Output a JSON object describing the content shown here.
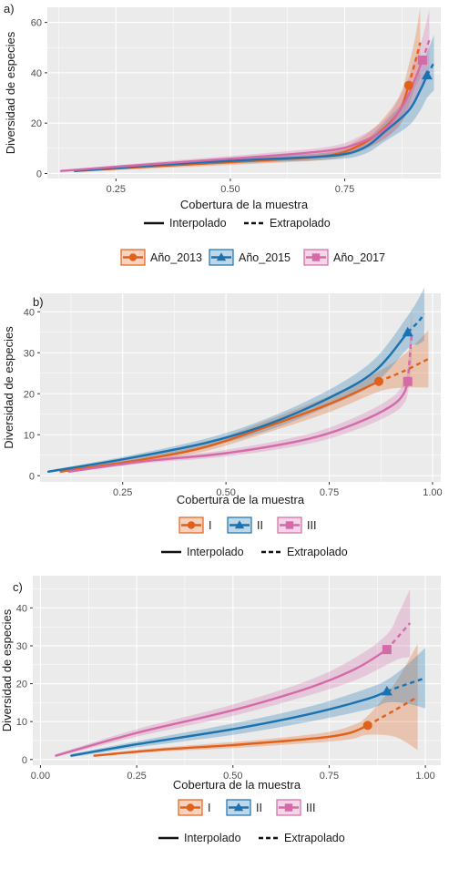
{
  "chart_data": [
    {
      "panel_label": "a)",
      "type": "line",
      "xlabel": "Cobertura de la muestra",
      "ylabel": "Diversidad de especies",
      "xlim": [
        0.1,
        0.96
      ],
      "ylim": [
        -2,
        66
      ],
      "x_ticks": [
        0.25,
        0.5,
        0.75
      ],
      "x_tick_labels": [
        "0.25",
        "0.50",
        "0.75"
      ],
      "y_ticks": [
        0,
        20,
        40,
        60
      ],
      "y_tick_labels": [
        "0",
        "20",
        "40",
        "60"
      ],
      "grid": true,
      "legend_position": "bottom",
      "line_legend": [
        "Interpolado",
        "Extrapolado"
      ],
      "series": [
        {
          "name": "Año_2013",
          "color": "#e1601a",
          "marker": "circle",
          "interpolated": [
            [
              0.16,
              1
            ],
            [
              0.35,
              3
            ],
            [
              0.55,
              5
            ],
            [
              0.71,
              7
            ],
            [
              0.78,
              11
            ],
            [
              0.83,
              17
            ],
            [
              0.87,
              25
            ],
            [
              0.89,
              35
            ]
          ],
          "extrapolated": [
            [
              0.89,
              35
            ],
            [
              0.905,
              45
            ],
            [
              0.915,
              52
            ]
          ],
          "band_half_width": [
            0.4,
            0.8,
            1.2,
            1.5,
            2.5,
            4,
            6,
            8,
            10,
            14,
            18
          ]
        },
        {
          "name": "Año_2015",
          "color": "#1a72b0",
          "marker": "triangle",
          "interpolated": [
            [
              0.16,
              1
            ],
            [
              0.35,
              3.5
            ],
            [
              0.55,
              5.5
            ],
            [
              0.72,
              7
            ],
            [
              0.79,
              10
            ],
            [
              0.84,
              17
            ],
            [
              0.89,
              25
            ],
            [
              0.915,
              33
            ],
            [
              0.93,
              39
            ]
          ],
          "extrapolated": [
            [
              0.93,
              39
            ],
            [
              0.945,
              44
            ]
          ],
          "band_half_width": [
            0.4,
            0.8,
            1.2,
            1.5,
            2.5,
            4,
            6,
            8,
            9,
            11
          ]
        },
        {
          "name": "Año_2017",
          "color": "#d46aa8",
          "marker": "square",
          "interpolated": [
            [
              0.13,
              1
            ],
            [
              0.35,
              4
            ],
            [
              0.55,
              6.5
            ],
            [
              0.71,
              9
            ],
            [
              0.78,
              12
            ],
            [
              0.84,
              18
            ],
            [
              0.88,
              28
            ],
            [
              0.905,
              38
            ],
            [
              0.92,
              45
            ]
          ],
          "extrapolated": [
            [
              0.92,
              45
            ],
            [
              0.935,
              53
            ]
          ],
          "band_half_width": [
            0.4,
            0.8,
            1.2,
            1.5,
            2.5,
            4,
            6,
            8,
            9,
            12
          ]
        }
      ]
    },
    {
      "panel_label": "b)",
      "type": "line",
      "xlabel": "Cobertura de la muestra",
      "ylabel": "Diversidad de especies",
      "xlim": [
        0.05,
        1.02
      ],
      "ylim": [
        -1.5,
        44.5
      ],
      "x_ticks": [
        0.25,
        0.5,
        0.75,
        1.0
      ],
      "x_tick_labels": [
        "0.25",
        "0.50",
        "0.75",
        "1.00"
      ],
      "y_ticks": [
        0,
        10,
        20,
        30,
        40
      ],
      "y_tick_labels": [
        "0",
        "10",
        "20",
        "30",
        "40"
      ],
      "grid": true,
      "legend_position": "bottom",
      "line_legend": [
        "Interpolado",
        "Extrapolado"
      ],
      "series": [
        {
          "name": "I",
          "color": "#e1601a",
          "marker": "circle",
          "interpolated": [
            [
              0.1,
              1
            ],
            [
              0.3,
              4
            ],
            [
              0.45,
              7
            ],
            [
              0.6,
              12
            ],
            [
              0.75,
              17.5
            ],
            [
              0.87,
              23
            ]
          ],
          "extrapolated": [
            [
              0.87,
              23
            ],
            [
              0.93,
              25.5
            ],
            [
              0.99,
              28.5
            ]
          ],
          "band_half_width": [
            0.3,
            0.6,
            1,
            1.5,
            2,
            2.5,
            4,
            7,
            10
          ]
        },
        {
          "name": "II",
          "color": "#1a72b0",
          "marker": "triangle",
          "interpolated": [
            [
              0.07,
              1
            ],
            [
              0.25,
              4
            ],
            [
              0.45,
              8
            ],
            [
              0.6,
              12.5
            ],
            [
              0.75,
              19
            ],
            [
              0.86,
              25.5
            ],
            [
              0.94,
              35
            ]
          ],
          "extrapolated": [
            [
              0.94,
              35
            ],
            [
              0.965,
              37.5
            ],
            [
              0.98,
              39.5
            ]
          ],
          "band_half_width": [
            0.3,
            0.6,
            1,
            1.5,
            2,
            3,
            4,
            5.5,
            6.5,
            7
          ]
        },
        {
          "name": "III",
          "color": "#d46aa8",
          "marker": "square",
          "interpolated": [
            [
              0.12,
              1
            ],
            [
              0.3,
              3.5
            ],
            [
              0.5,
              5.5
            ],
            [
              0.7,
              9
            ],
            [
              0.82,
              13
            ],
            [
              0.9,
              17
            ],
            [
              0.93,
              20
            ],
            [
              0.94,
              23
            ]
          ],
          "extrapolated": [
            [
              0.94,
              23
            ],
            [
              0.945,
              29
            ],
            [
              0.95,
              35
            ]
          ],
          "band_half_width": [
            0.3,
            0.5,
            0.8,
            1.2,
            1.6,
            2,
            2.5,
            3,
            5,
            7
          ]
        }
      ]
    },
    {
      "panel_label": "c)",
      "type": "line",
      "xlabel": "Cobertura de la muestra",
      "ylabel": "Diversidad de especies",
      "xlim": [
        -0.02,
        1.04
      ],
      "ylim": [
        -1.5,
        48.5
      ],
      "x_ticks": [
        0.0,
        0.25,
        0.5,
        0.75,
        1.0
      ],
      "x_tick_labels": [
        "0.00",
        "0.25",
        "0.50",
        "0.75",
        "1.00"
      ],
      "y_ticks": [
        0,
        10,
        20,
        30,
        40
      ],
      "y_tick_labels": [
        "0",
        "10",
        "20",
        "30",
        "40"
      ],
      "grid": true,
      "legend_position": "bottom",
      "line_legend": [
        "Interpolado",
        "Extrapolado"
      ],
      "series": [
        {
          "name": "I",
          "color": "#e1601a",
          "marker": "circle",
          "interpolated": [
            [
              0.14,
              1
            ],
            [
              0.3,
              2.5
            ],
            [
              0.5,
              3.8
            ],
            [
              0.65,
              5
            ],
            [
              0.75,
              6
            ],
            [
              0.81,
              7.2
            ],
            [
              0.85,
              9
            ]
          ],
          "extrapolated": [
            [
              0.85,
              9
            ],
            [
              0.92,
              13
            ],
            [
              0.98,
              16.5
            ]
          ],
          "band_half_width": [
            0.3,
            0.5,
            0.8,
            1,
            1.3,
            1.8,
            2.5,
            7,
            14
          ]
        },
        {
          "name": "II",
          "color": "#1a72b0",
          "marker": "triangle",
          "interpolated": [
            [
              0.08,
              1
            ],
            [
              0.25,
              4
            ],
            [
              0.5,
              8
            ],
            [
              0.7,
              12
            ],
            [
              0.85,
              16
            ],
            [
              0.9,
              18
            ]
          ],
          "extrapolated": [
            [
              0.9,
              18
            ],
            [
              0.95,
              19.8
            ],
            [
              1.0,
              21.5
            ]
          ],
          "band_half_width": [
            0.4,
            0.8,
            1.5,
            2,
            2.8,
            3,
            5,
            8
          ]
        },
        {
          "name": "III",
          "color": "#d46aa8",
          "marker": "square",
          "interpolated": [
            [
              0.04,
              1
            ],
            [
              0.25,
              7
            ],
            [
              0.5,
              13
            ],
            [
              0.7,
              19
            ],
            [
              0.82,
              24
            ],
            [
              0.9,
              29
            ]
          ],
          "extrapolated": [
            [
              0.9,
              29
            ],
            [
              0.93,
              32.5
            ],
            [
              0.96,
              36
            ]
          ],
          "band_half_width": [
            0.4,
            1,
            1.5,
            2,
            3,
            4,
            6,
            9
          ]
        }
      ]
    }
  ]
}
